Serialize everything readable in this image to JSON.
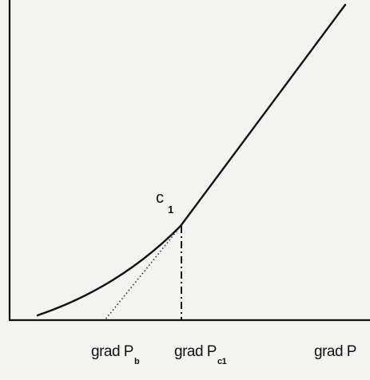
{
  "diagram": {
    "point_label": {
      "letter": "c",
      "index": "1"
    },
    "x_labels": [
      {
        "text": "grad P",
        "sub": "b"
      },
      {
        "text": "grad P",
        "sub": "c1"
      },
      {
        "text": "grad P",
        "sub": ""
      }
    ]
  }
}
